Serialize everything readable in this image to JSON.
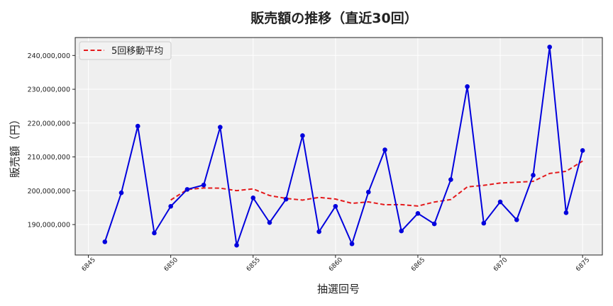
{
  "chart_data": {
    "type": "line",
    "title": "販売額の推移（直近30回）",
    "xlabel": "抽選回号",
    "ylabel": "販売額（円）",
    "x": [
      6846,
      6847,
      6848,
      6849,
      6850,
      6851,
      6852,
      6853,
      6854,
      6855,
      6856,
      6857,
      6858,
      6859,
      6860,
      6861,
      6862,
      6863,
      6864,
      6865,
      6866,
      6867,
      6868,
      6869,
      6870,
      6871,
      6872,
      6873,
      6874,
      6875
    ],
    "series": [
      {
        "name": "販売額",
        "style": "solid-marker",
        "color": "#0000dd",
        "values": [
          184900000,
          199400000,
          219100000,
          187500000,
          195400000,
          200400000,
          201700000,
          218800000,
          183900000,
          197900000,
          190600000,
          197500000,
          216300000,
          187900000,
          195400000,
          184300000,
          199600000,
          212100000,
          188100000,
          193300000,
          190200000,
          203300000,
          230800000,
          190400000,
          196700000,
          191400000,
          204600000,
          242500000,
          193500000,
          211900000
        ]
      },
      {
        "name": "5回移動平均",
        "style": "dashed",
        "color": "#e41a1c",
        "start_index": 4
      }
    ],
    "xlim": [
      6844.2,
      6876.2
    ],
    "ylim": [
      181000000,
      245300000
    ],
    "xticks": [
      6845,
      6850,
      6855,
      6860,
      6865,
      6870,
      6875
    ],
    "yticks": [
      190000000,
      200000000,
      210000000,
      220000000,
      230000000,
      240000000
    ],
    "ytick_labels": [
      "190,000,000",
      "200,000,000",
      "210,000,000",
      "220,000,000",
      "230,000,000",
      "240,000,000"
    ],
    "grid": true,
    "legend_position": "upper left"
  },
  "legend": {
    "label": "5回移動平均"
  },
  "colors": {
    "plot_bg": "#efefef",
    "grid": "#ffffff",
    "line": "#0000dd",
    "ma": "#e41a1c"
  }
}
